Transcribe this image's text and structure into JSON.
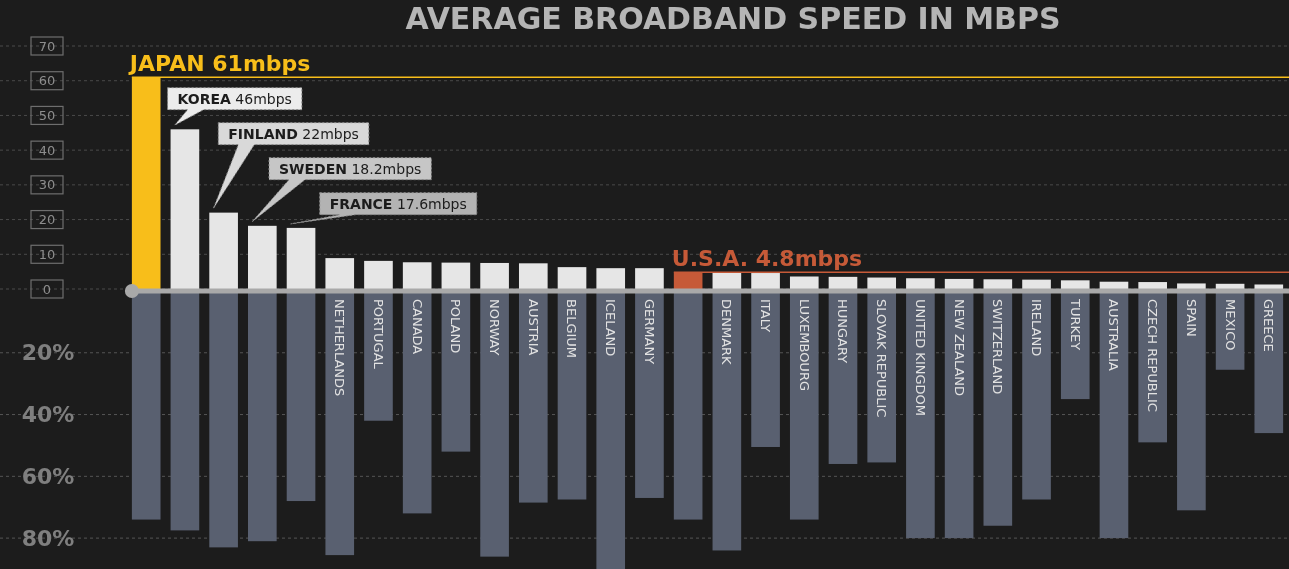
{
  "chart_data": [
    {
      "type": "bar",
      "title": "AVERAGE BROADBAND SPEED IN MBPS",
      "categories": [
        null,
        null,
        null,
        null,
        null,
        null,
        null,
        null,
        null,
        null,
        null,
        null,
        null,
        null,
        null,
        null,
        null,
        null,
        null,
        null,
        null,
        null,
        null,
        null,
        null,
        null,
        null,
        null,
        null,
        null
      ],
      "tick_labels": "y",
      "annotations": [
        "KOREA 46mbps",
        "FINLAND 22mbps",
        "SWEDEN 18.2mbps",
        "FRANCE 17.6mbps"
      ],
      "values": [
        61,
        46,
        22,
        18.2,
        17.6,
        8.9,
        8.1,
        7.7,
        7.6,
        7.5,
        7.4,
        6.3,
        6.0,
        6.0,
        4.8,
        4.9,
        4.6,
        3.6,
        3.5,
        3.3,
        3.1,
        2.9,
        2.8,
        2.7,
        2.5,
        2.1,
        2.0,
        1.6,
        1.5,
        1.3
      ],
      "colors": [
        "#f8be1a",
        "#e6e6e6",
        "#e6e6e6",
        "#e6e6e6",
        "#e6e6e6",
        "#e6e6e6",
        "#e6e6e6",
        "#e6e6e6",
        "#e6e6e6",
        "#e6e6e6",
        "#e6e6e6",
        "#e6e6e6",
        "#e6e6e6",
        "#e6e6e6",
        "#c65a38",
        "#e6e6e6",
        "#e6e6e6",
        "#e6e6e6",
        "#e6e6e6",
        "#e6e6e6",
        "#e6e6e6",
        "#e6e6e6",
        "#e6e6e6",
        "#e6e6e6",
        "#e6e6e6",
        "#e6e6e6",
        "#e6e6e6",
        "#e6e6e6",
        "#e6e6e6",
        "#e6e6e6"
      ],
      "ref_lines": [
        {
          "axis": "y",
          "value": 61,
          "label": "JAPAN 61mbps",
          "color": "#f8be1a"
        },
        {
          "axis": "y",
          "value": 4.8,
          "label": "U.S.A. 4.8mbps",
          "color": "#c65a38"
        }
      ],
      "ylim": [
        0,
        70
      ],
      "yticks": [
        0,
        10,
        20,
        30,
        40,
        50,
        60,
        70
      ],
      "grid": "y"
    },
    {
      "type": "bar",
      "categories": [
        null,
        null,
        null,
        null,
        null,
        "NETHERLANDS",
        "PORTUGAL",
        "CANADA",
        "POLAND",
        "NORWAY",
        "AUSTRIA",
        "BELGIUM",
        "ICELAND",
        "GERMANY",
        null,
        "DENMARK",
        "ITALY",
        "LUXEMBOURG",
        "HUNGARY",
        "SLOVAK REPUBLIC",
        "UNITED KINGDOM",
        "NEW ZEALAND",
        "SWITZERLAND",
        "IRELAND",
        "TURKEY",
        "AUSTRALIA",
        "CZECH REPUBLIC",
        "SPAIN",
        "MEXICO",
        "GREECE"
      ],
      "values": [
        74,
        77.5,
        83,
        81,
        68,
        85.5,
        42,
        72,
        52,
        86,
        68.5,
        67.5,
        90,
        67,
        74,
        84,
        50.5,
        74,
        56,
        55.5,
        80,
        80,
        76,
        67.5,
        35,
        80,
        49,
        71,
        25.5,
        46
      ],
      "color": "#596070",
      "ylim": [
        90,
        0
      ],
      "yticks": [
        {
          "value": 20,
          "label": "20%"
        },
        {
          "value": 40,
          "label": "40%"
        },
        {
          "value": 60,
          "label": "60%"
        },
        {
          "value": 80,
          "label": "80%"
        }
      ],
      "grid": "y"
    }
  ]
}
